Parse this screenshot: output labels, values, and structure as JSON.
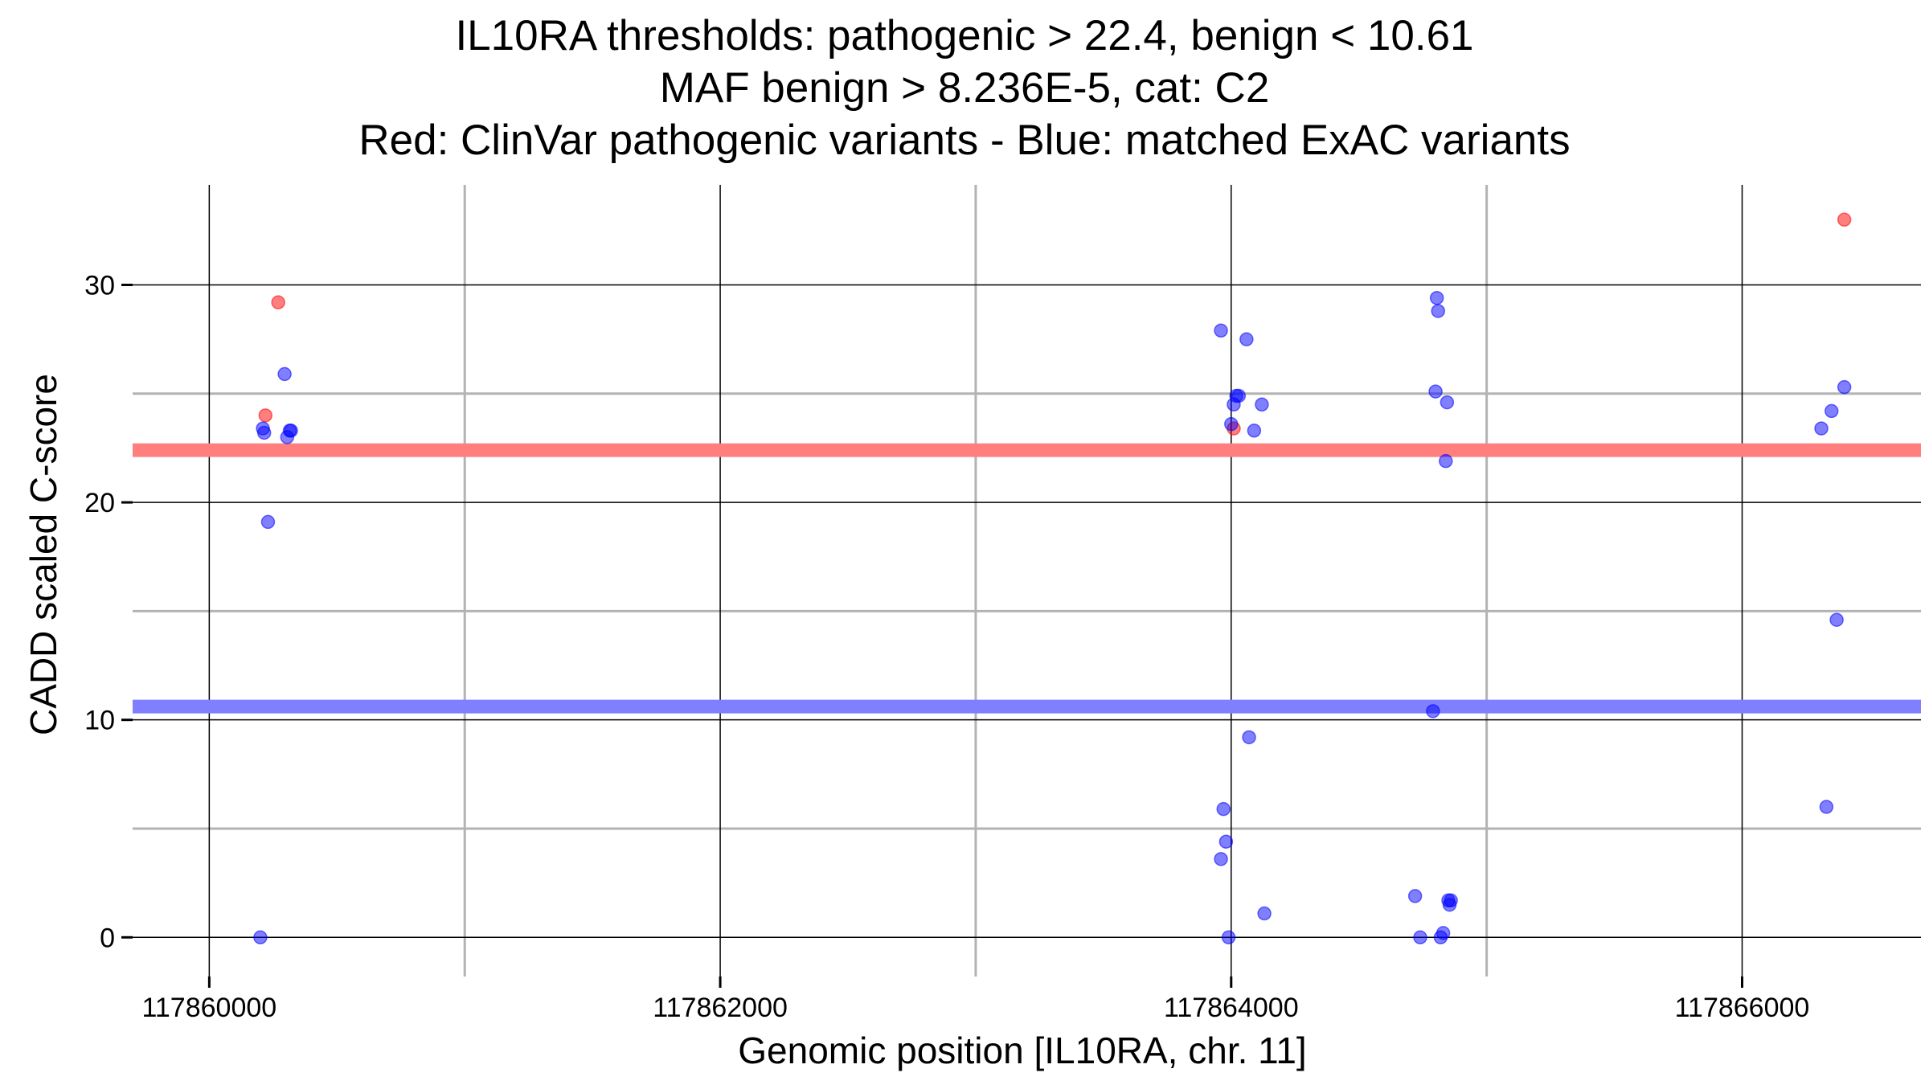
{
  "title_lines": [
    "IL10RA thresholds: pathogenic > 22.4, benign < 10.61",
    "MAF benign > 8.236E-5, cat: C2",
    "Red: ClinVar pathogenic variants - Blue: matched ExAC variants"
  ],
  "chart_data": {
    "type": "scatter",
    "xlabel": "Genomic position [IL10RA, chr. 11]",
    "ylabel": "CADD scaled C-score",
    "xlim": [
      117859700,
      117866700
    ],
    "ylim": [
      -1.8,
      34.6
    ],
    "x_ticks": [
      117860000,
      117862000,
      117864000,
      117866000
    ],
    "x_tick_labels": [
      "117860000",
      "117862000",
      "117864000",
      "117866000"
    ],
    "x_minor_gridlines": [
      117861000,
      117863000,
      117865000
    ],
    "y_ticks": [
      0,
      10,
      20,
      30
    ],
    "y_tick_labels": [
      "0",
      "10",
      "20",
      "30"
    ],
    "y_minor_gridlines": [
      5,
      15,
      25
    ],
    "thresholds": [
      {
        "value": 22.4,
        "color": "#FF7F7F"
      },
      {
        "value": 10.61,
        "color": "#7F7FFF"
      }
    ],
    "series": [
      {
        "color": "#FF0000",
        "x": [
          117860220,
          117860270,
          117864010,
          117866400
        ],
        "y": [
          24.0,
          29.2,
          23.4,
          33.0
        ]
      },
      {
        "color": "#0000FF",
        "x": [
          117860200,
          117860210,
          117860215,
          117860230,
          117860295,
          117860305,
          117860315,
          117860320,
          117863960,
          117863960,
          117863970,
          117863980,
          117863990,
          117864000,
          117864010,
          117864020,
          117864030,
          117864060,
          117864070,
          117864090,
          117864120,
          117864130,
          117864720,
          117864740,
          117864790,
          117864800,
          117864805,
          117864810,
          117864820,
          117864830,
          117864840,
          117864845,
          117864850,
          117864855,
          117864860,
          117866310,
          117866330,
          117866350,
          117866370,
          117866400
        ],
        "y": [
          0.0,
          23.4,
          23.2,
          19.1,
          25.9,
          23.0,
          23.3,
          23.3,
          3.6,
          27.9,
          5.9,
          4.4,
          0.0,
          23.6,
          24.5,
          24.9,
          24.9,
          27.5,
          9.2,
          23.3,
          24.5,
          1.1,
          1.9,
          0.0,
          10.4,
          25.1,
          29.4,
          28.8,
          0.0,
          0.2,
          21.9,
          24.6,
          1.7,
          1.5,
          1.7,
          23.4,
          6.0,
          24.2,
          14.6,
          25.3
        ]
      }
    ]
  }
}
